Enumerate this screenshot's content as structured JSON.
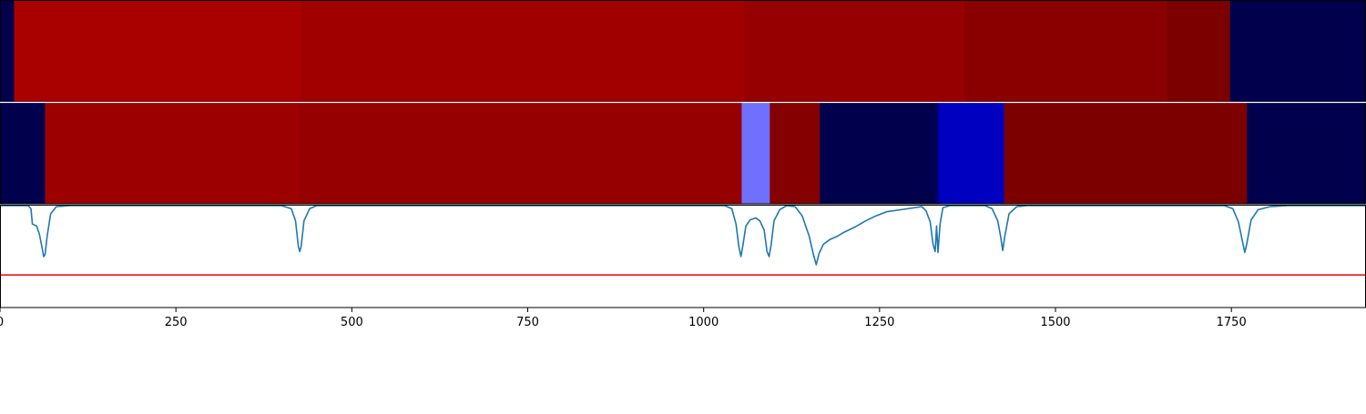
{
  "chart_data": {
    "type": "heatmap",
    "x_range": [
      0,
      1940
    ],
    "x_ticks": [
      0,
      250,
      500,
      750,
      1000,
      1250,
      1500,
      1750
    ],
    "x_tick_labels": [
      "0",
      "250",
      "500",
      "750",
      "1000",
      "1250",
      "1500",
      "1750"
    ],
    "tracks": [
      {
        "segments": [
          {
            "start": 0,
            "end": 20,
            "color": "#00004c"
          },
          {
            "start": 20,
            "end": 428,
            "color": "#a90000"
          },
          {
            "start": 428,
            "end": 1058,
            "color": "#a00000"
          },
          {
            "start": 1058,
            "end": 1370,
            "color": "#970000"
          },
          {
            "start": 1370,
            "end": 1658,
            "color": "#8a0000"
          },
          {
            "start": 1658,
            "end": 1748,
            "color": "#7d0000"
          },
          {
            "start": 1748,
            "end": 1940,
            "color": "#00004c"
          }
        ]
      },
      {
        "segments": [
          {
            "start": 0,
            "end": 64,
            "color": "#00004c"
          },
          {
            "start": 64,
            "end": 424,
            "color": "#9d0000"
          },
          {
            "start": 424,
            "end": 1054,
            "color": "#970000"
          },
          {
            "start": 1054,
            "end": 1094,
            "color": "#7070ff"
          },
          {
            "start": 1094,
            "end": 1165,
            "color": "#850000"
          },
          {
            "start": 1165,
            "end": 1330,
            "color": "#00004c"
          },
          {
            "start": 1330,
            "end": 1334,
            "color": "#00006a"
          },
          {
            "start": 1334,
            "end": 1427,
            "color": "#0000c0"
          },
          {
            "start": 1427,
            "end": 1772,
            "color": "#7d0000"
          },
          {
            "start": 1772,
            "end": 1940,
            "color": "#00004c"
          }
        ]
      }
    ],
    "signal": {
      "y_range": [
        0,
        1
      ],
      "threshold": 0.32,
      "threshold_color": "#e41a1c",
      "line_color": "#1f77b4",
      "points": [
        [
          0,
          1.0
        ],
        [
          40,
          1.0
        ],
        [
          44,
          0.97
        ],
        [
          46,
          0.82
        ],
        [
          52,
          0.8
        ],
        [
          56,
          0.72
        ],
        [
          60,
          0.58
        ],
        [
          62,
          0.5
        ],
        [
          64,
          0.52
        ],
        [
          67,
          0.7
        ],
        [
          72,
          0.92
        ],
        [
          80,
          0.99
        ],
        [
          100,
          1.0
        ],
        [
          400,
          1.0
        ],
        [
          414,
          0.97
        ],
        [
          420,
          0.85
        ],
        [
          424,
          0.6
        ],
        [
          426,
          0.55
        ],
        [
          428,
          0.6
        ],
        [
          432,
          0.85
        ],
        [
          440,
          0.97
        ],
        [
          450,
          1.0
        ],
        [
          1030,
          1.0
        ],
        [
          1040,
          0.97
        ],
        [
          1046,
          0.82
        ],
        [
          1050,
          0.6
        ],
        [
          1053,
          0.5
        ],
        [
          1056,
          0.62
        ],
        [
          1060,
          0.8
        ],
        [
          1066,
          0.86
        ],
        [
          1074,
          0.88
        ],
        [
          1080,
          0.85
        ],
        [
          1086,
          0.76
        ],
        [
          1090,
          0.55
        ],
        [
          1093,
          0.5
        ],
        [
          1096,
          0.62
        ],
        [
          1100,
          0.85
        ],
        [
          1108,
          0.96
        ],
        [
          1118,
          1.0
        ],
        [
          1130,
          0.99
        ],
        [
          1140,
          0.9
        ],
        [
          1150,
          0.7
        ],
        [
          1156,
          0.52
        ],
        [
          1160,
          0.42
        ],
        [
          1164,
          0.53
        ],
        [
          1170,
          0.62
        ],
        [
          1180,
          0.67
        ],
        [
          1190,
          0.7
        ],
        [
          1200,
          0.74
        ],
        [
          1215,
          0.79
        ],
        [
          1230,
          0.85
        ],
        [
          1245,
          0.9
        ],
        [
          1260,
          0.94
        ],
        [
          1280,
          0.96
        ],
        [
          1300,
          0.98
        ],
        [
          1310,
          0.99
        ],
        [
          1316,
          0.95
        ],
        [
          1322,
          0.84
        ],
        [
          1326,
          0.62
        ],
        [
          1329,
          0.55
        ],
        [
          1331,
          0.8
        ],
        [
          1333,
          0.54
        ],
        [
          1336,
          0.82
        ],
        [
          1340,
          0.98
        ],
        [
          1350,
          1.0
        ],
        [
          1400,
          1.0
        ],
        [
          1410,
          0.97
        ],
        [
          1418,
          0.85
        ],
        [
          1422,
          0.7
        ],
        [
          1425,
          0.56
        ],
        [
          1428,
          0.7
        ],
        [
          1434,
          0.92
        ],
        [
          1445,
          0.99
        ],
        [
          1460,
          1.0
        ],
        [
          1740,
          1.0
        ],
        [
          1752,
          0.97
        ],
        [
          1760,
          0.84
        ],
        [
          1766,
          0.64
        ],
        [
          1769,
          0.54
        ],
        [
          1772,
          0.63
        ],
        [
          1778,
          0.86
        ],
        [
          1788,
          0.96
        ],
        [
          1805,
          0.99
        ],
        [
          1830,
          1.0
        ],
        [
          1940,
          1.0
        ]
      ]
    }
  }
}
